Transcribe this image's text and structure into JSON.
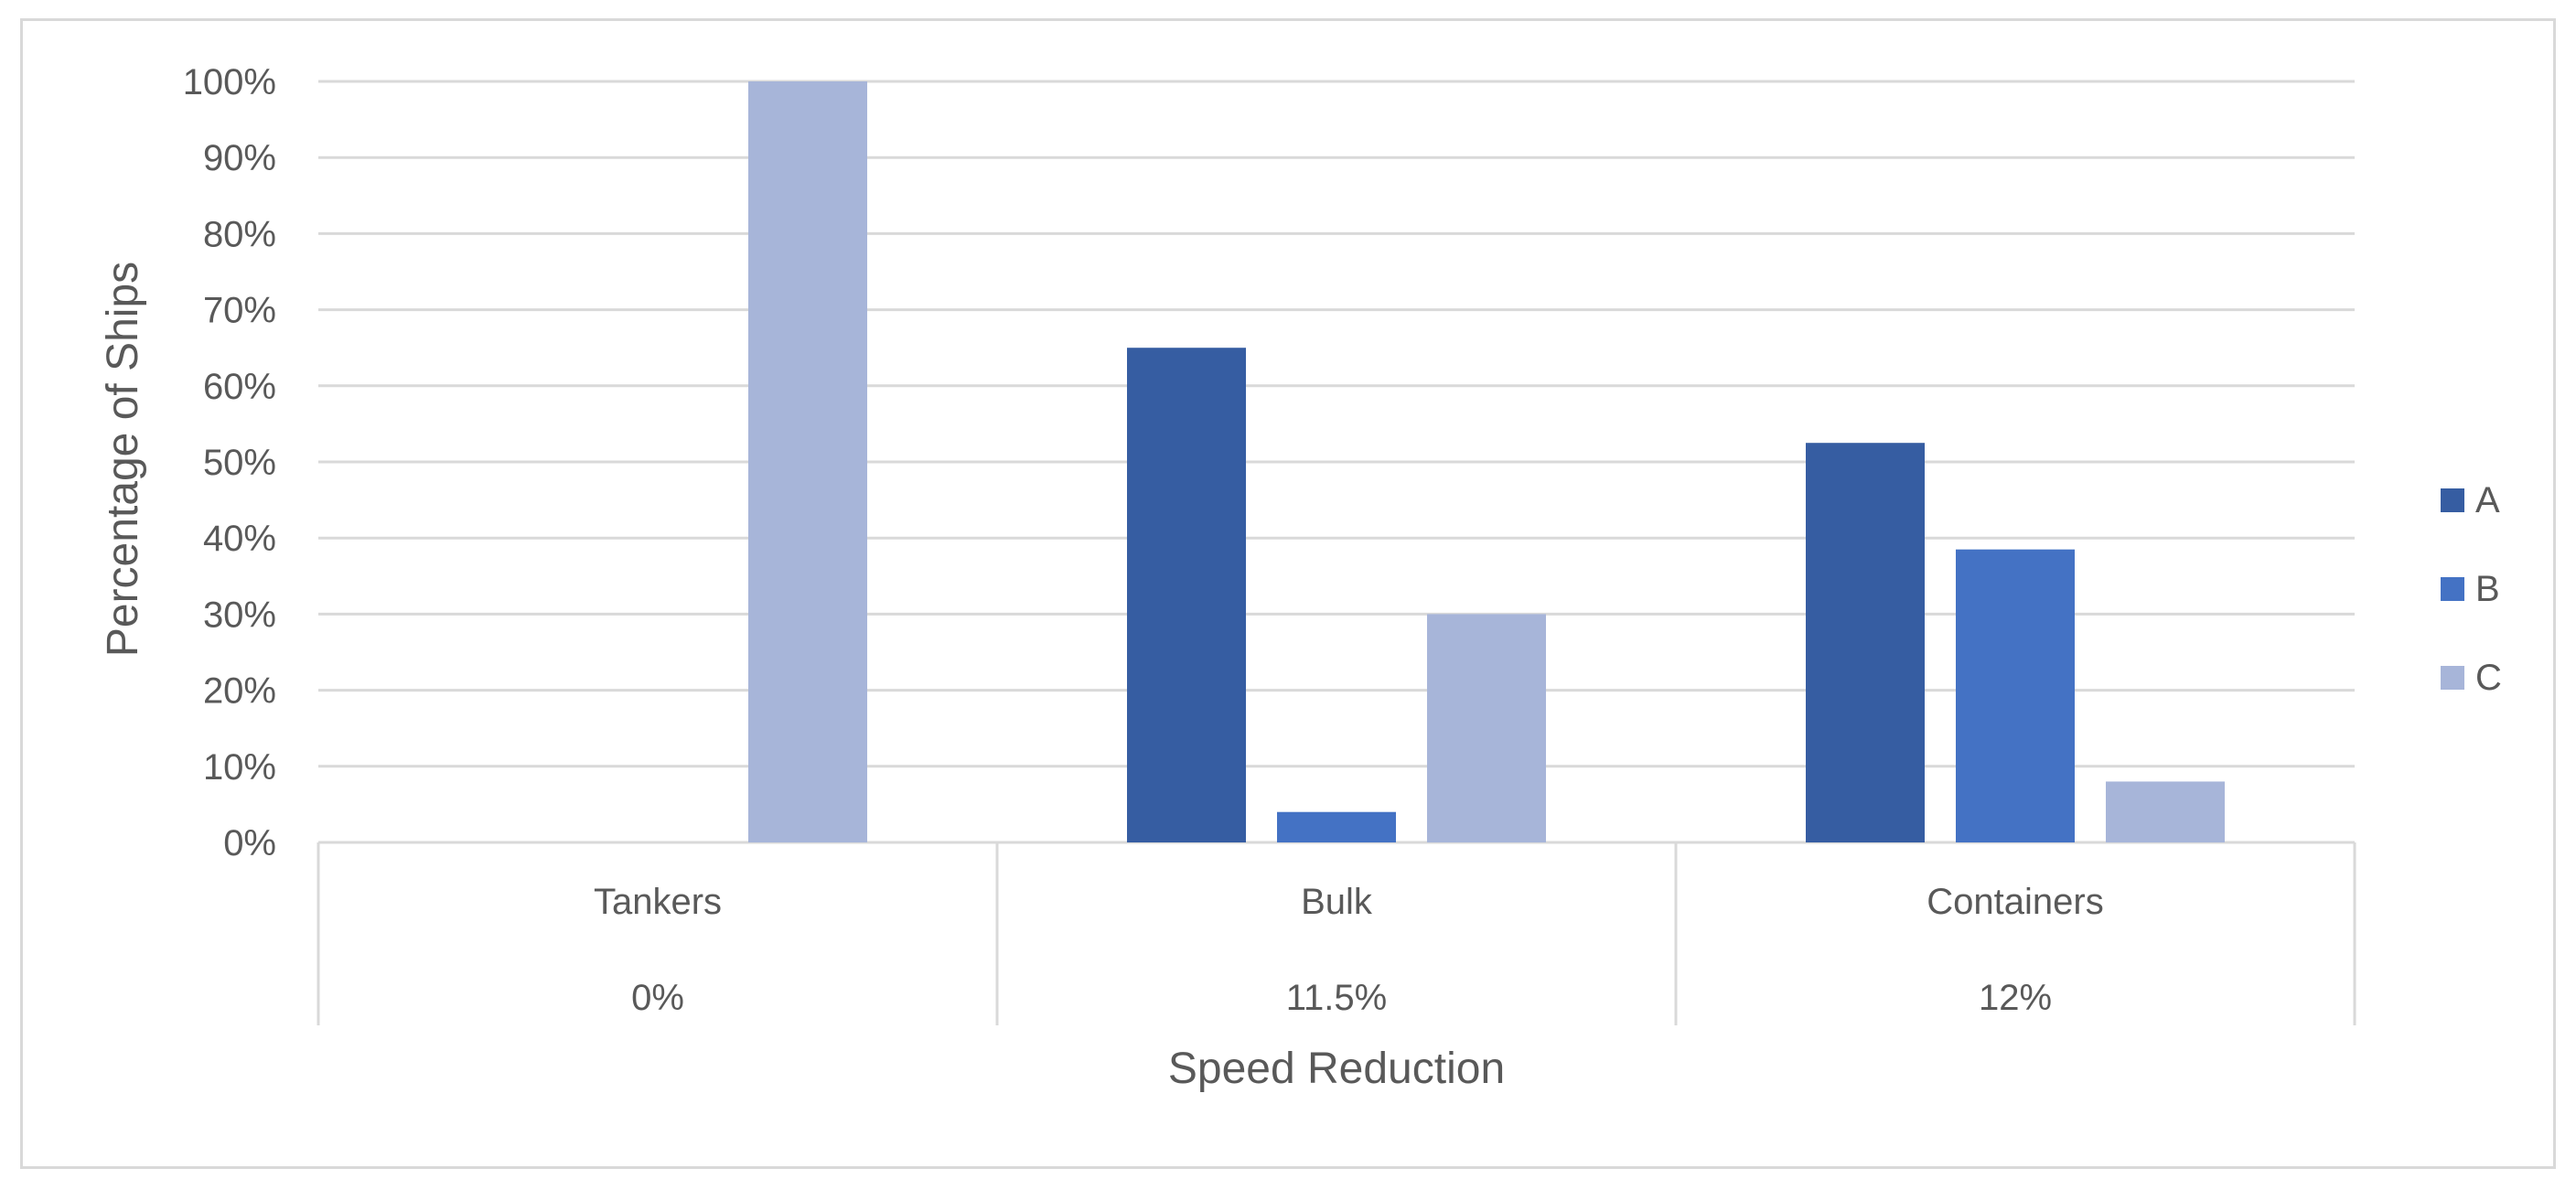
{
  "chart_data": {
    "type": "bar",
    "categories": [
      "Tankers",
      "Bulk",
      "Containers"
    ],
    "category_sublabels": [
      "0%",
      "11.5%",
      "12%"
    ],
    "series": [
      {
        "name": "A",
        "values": [
          0,
          65,
          52.5
        ],
        "color": "#365da2"
      },
      {
        "name": "B",
        "values": [
          0,
          4,
          38.5
        ],
        "color": "#4472c4"
      },
      {
        "name": "C",
        "values": [
          100,
          30,
          8
        ],
        "color": "#a7b5d9"
      }
    ],
    "title": "",
    "xlabel": "Speed Reduction",
    "ylabel": "Percentage of Ships",
    "ylim": [
      0,
      100
    ],
    "yticks": [
      "0%",
      "10%",
      "20%",
      "30%",
      "40%",
      "50%",
      "60%",
      "70%",
      "80%",
      "90%",
      "100%"
    ],
    "grid": true,
    "legend_position": "right",
    "gridline_color": "#d9d9d9",
    "text_color": "#595959"
  }
}
